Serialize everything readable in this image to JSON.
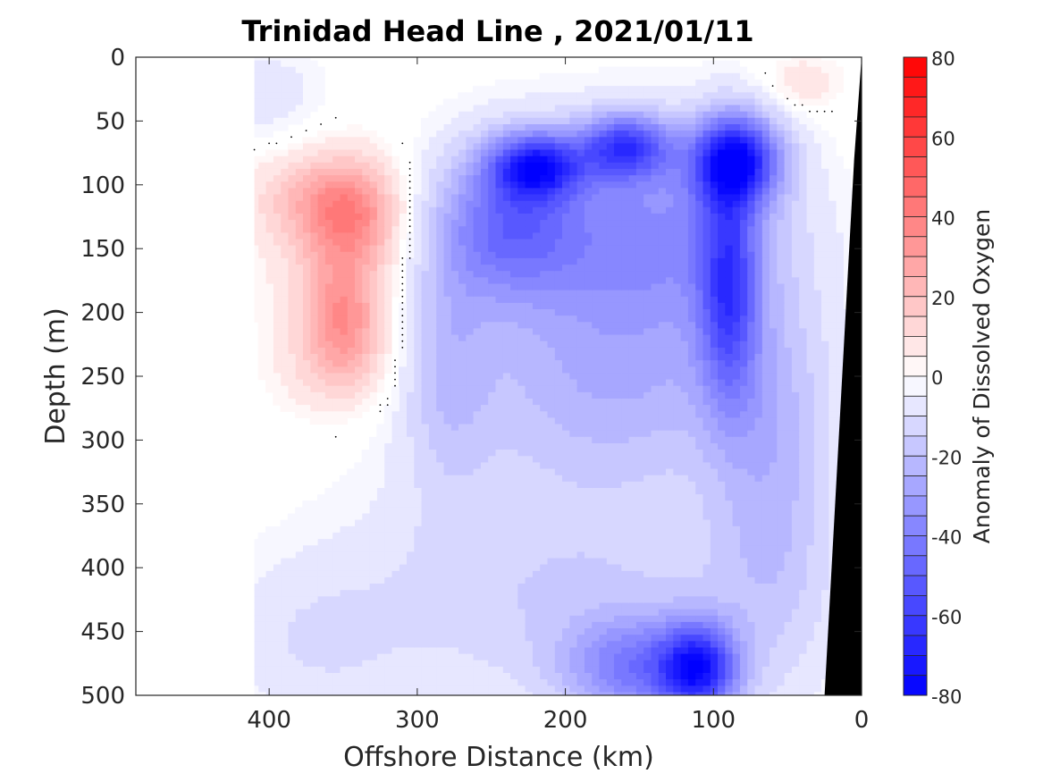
{
  "chart_data": {
    "type": "heatmap",
    "title": "Trinidad Head Line , 2021/01/11",
    "xlabel": "Offshore Distance (km)",
    "ylabel": "Depth (m)",
    "colorbar_label": "Anomaly of Dissolved Oxygen",
    "xlim": [
      490,
      0
    ],
    "x_reversed": true,
    "ylim": [
      0,
      500
    ],
    "y_reversed": true,
    "x_ticks": [
      400,
      300,
      200,
      100,
      0
    ],
    "x_tick_labels": [
      "400",
      "300",
      "200",
      "100",
      "0"
    ],
    "y_ticks": [
      0,
      50,
      100,
      150,
      200,
      250,
      300,
      350,
      400,
      450,
      500
    ],
    "y_tick_labels": [
      "0",
      "50",
      "100",
      "150",
      "200",
      "250",
      "300",
      "350",
      "400",
      "450",
      "500"
    ],
    "colorbar": {
      "range": [
        -80,
        80
      ],
      "levels_step": 5,
      "ticks": [
        80,
        60,
        40,
        20,
        0,
        -20,
        -40,
        -60,
        -80
      ],
      "tick_labels": [
        "80",
        "60",
        "40",
        "20",
        "0",
        "-20",
        "-40",
        "-60",
        "-80"
      ],
      "negative_color": "#0000ff",
      "positive_color": "#ff0000",
      "zero_color": "#ffffff"
    },
    "data_x_start": 410,
    "zero_contour_color": "#000000",
    "land_color": "#000000",
    "anomaly_features": [
      {
        "x": 345,
        "y": 125,
        "value": 25,
        "rx": 30,
        "ry": 40
      },
      {
        "x": 350,
        "y": 205,
        "value": 25,
        "rx": 25,
        "ry": 45
      },
      {
        "x": 370,
        "y": 110,
        "value": 15,
        "rx": 45,
        "ry": 35
      },
      {
        "x": 355,
        "y": 170,
        "value": 12,
        "rx": 45,
        "ry": 80
      },
      {
        "x": 355,
        "y": 245,
        "value": 8,
        "rx": 40,
        "ry": 35
      },
      {
        "x": 40,
        "y": 20,
        "value": 10,
        "rx": 25,
        "ry": 20
      },
      {
        "x": 220,
        "y": 85,
        "value": -55,
        "rx": 30,
        "ry": 25
      },
      {
        "x": 160,
        "y": 70,
        "value": -50,
        "rx": 30,
        "ry": 25
      },
      {
        "x": 85,
        "y": 80,
        "value": -65,
        "rx": 30,
        "ry": 35
      },
      {
        "x": 90,
        "y": 180,
        "value": -42,
        "rx": 20,
        "ry": 90
      },
      {
        "x": 150,
        "y": 140,
        "value": -35,
        "rx": 90,
        "ry": 80
      },
      {
        "x": 240,
        "y": 130,
        "value": -35,
        "rx": 45,
        "ry": 60
      },
      {
        "x": 170,
        "y": 260,
        "value": -22,
        "rx": 110,
        "ry": 80
      },
      {
        "x": 110,
        "y": 480,
        "value": -55,
        "rx": 25,
        "ry": 35
      },
      {
        "x": 150,
        "y": 480,
        "value": -35,
        "rx": 50,
        "ry": 40
      },
      {
        "x": 200,
        "y": 420,
        "value": -15,
        "rx": 150,
        "ry": 90
      },
      {
        "x": 280,
        "y": 230,
        "value": -15,
        "rx": 30,
        "ry": 110
      },
      {
        "x": 60,
        "y": 330,
        "value": -18,
        "rx": 40,
        "ry": 150
      },
      {
        "x": 370,
        "y": 460,
        "value": -8,
        "rx": 60,
        "ry": 60
      },
      {
        "x": 400,
        "y": 30,
        "value": -8,
        "rx": 40,
        "ry": 40
      }
    ]
  }
}
